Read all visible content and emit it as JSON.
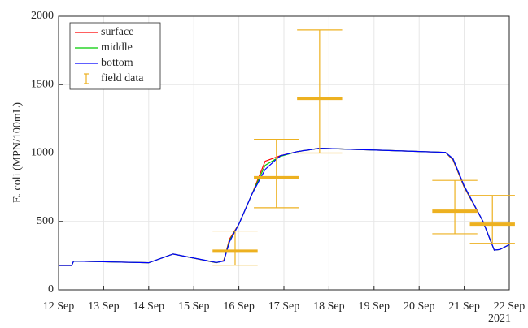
{
  "chart_data": {
    "type": "line",
    "ylabel": "E. coli (MPN/100mL)",
    "x_annotation": "2021",
    "xlim": [
      "2021-09-12T00:00",
      "2021-09-22T00:00"
    ],
    "xticks": [
      {
        "value": "2021-09-12T00:00",
        "label": "12 Sep"
      },
      {
        "value": "2021-09-13T00:00",
        "label": "13 Sep"
      },
      {
        "value": "2021-09-14T00:00",
        "label": "14 Sep"
      },
      {
        "value": "2021-09-15T00:00",
        "label": "15 Sep"
      },
      {
        "value": "2021-09-16T00:00",
        "label": "16 Sep"
      },
      {
        "value": "2021-09-17T00:00",
        "label": "17 Sep"
      },
      {
        "value": "2021-09-18T00:00",
        "label": "18 Sep"
      },
      {
        "value": "2021-09-19T00:00",
        "label": "19 Sep"
      },
      {
        "value": "2021-09-20T00:00",
        "label": "20 Sep"
      },
      {
        "value": "2021-09-21T00:00",
        "label": "21 Sep"
      },
      {
        "value": "2021-09-22T00:00",
        "label": "22 Sep"
      }
    ],
    "ylim": [
      0,
      2000
    ],
    "yticks": [
      0,
      500,
      1000,
      1500,
      2000
    ],
    "grid": true,
    "legend": "upper left",
    "x": [
      "2021-09-12T00:00",
      "2021-09-12T07:00",
      "2021-09-12T08:00",
      "2021-09-14T00:00",
      "2021-09-14T13:00",
      "2021-09-15T12:00",
      "2021-09-15T16:00",
      "2021-09-15T19:00",
      "2021-09-16T00:00",
      "2021-09-16T07:00",
      "2021-09-16T14:00",
      "2021-09-16T22:00",
      "2021-09-17T07:00",
      "2021-09-17T19:00",
      "2021-09-20T14:00",
      "2021-09-20T18:00",
      "2021-09-21T00:00",
      "2021-09-21T10:00",
      "2021-09-21T16:00",
      "2021-09-21T19:00",
      "2021-09-22T00:00"
    ],
    "series": [
      {
        "name": "surface",
        "color": "#ff0000",
        "values": [
          178,
          178,
          210,
          198,
          262,
          198,
          215,
          370,
          480,
          700,
          940,
          980,
          1010,
          1035,
          1005,
          950,
          750,
          500,
          290,
          295,
          330
        ]
      },
      {
        "name": "middle",
        "color": "#00cc00",
        "values": [
          178,
          178,
          210,
          198,
          262,
          199,
          212,
          360,
          480,
          700,
          910,
          975,
          1010,
          1035,
          1005,
          955,
          755,
          500,
          290,
          295,
          330
        ]
      },
      {
        "name": "bottom",
        "color": "#0000ff",
        "values": [
          178,
          178,
          210,
          198,
          262,
          200,
          210,
          350,
          480,
          700,
          880,
          980,
          1010,
          1035,
          1005,
          960,
          760,
          500,
          290,
          295,
          330
        ]
      }
    ],
    "error_bars": {
      "name": "field data",
      "color": "#edb120",
      "x": [
        "2021-09-15T22:00",
        "2021-09-16T20:00",
        "2021-09-17T19:00",
        "2021-09-20T19:00",
        "2021-09-21T15:00"
      ],
      "values": [
        283,
        820,
        1400,
        575,
        480
      ],
      "lower": [
        180,
        600,
        1000,
        410,
        340
      ],
      "upper": [
        430,
        1100,
        1900,
        800,
        690
      ]
    }
  }
}
